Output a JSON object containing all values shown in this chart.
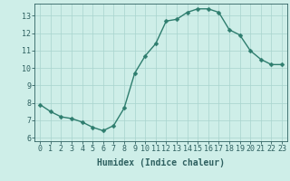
{
  "x": [
    0,
    1,
    2,
    3,
    4,
    5,
    6,
    7,
    8,
    9,
    10,
    11,
    12,
    13,
    14,
    15,
    16,
    17,
    18,
    19,
    20,
    21,
    22,
    23
  ],
  "y": [
    7.9,
    7.5,
    7.2,
    7.1,
    6.9,
    6.6,
    6.4,
    6.7,
    7.7,
    9.7,
    10.7,
    11.4,
    12.7,
    12.8,
    13.2,
    13.4,
    13.4,
    13.2,
    12.2,
    11.9,
    11.0,
    10.5,
    10.2,
    10.2
  ],
  "line_color": "#2e7d6e",
  "marker_color": "#2e7d6e",
  "bg_color": "#ceeee8",
  "grid_color": "#a8d4ce",
  "xlabel": "Humidex (Indice chaleur)",
  "xlim": [
    -0.5,
    23.5
  ],
  "ylim": [
    5.8,
    13.7
  ],
  "yticks": [
    6,
    7,
    8,
    9,
    10,
    11,
    12,
    13
  ],
  "xticks": [
    0,
    1,
    2,
    3,
    4,
    5,
    6,
    7,
    8,
    9,
    10,
    11,
    12,
    13,
    14,
    15,
    16,
    17,
    18,
    19,
    20,
    21,
    22,
    23
  ],
  "xtick_labels": [
    "0",
    "1",
    "2",
    "3",
    "4",
    "5",
    "6",
    "7",
    "8",
    "9",
    "10",
    "11",
    "12",
    "13",
    "14",
    "15",
    "16",
    "17",
    "18",
    "19",
    "20",
    "21",
    "22",
    "23"
  ],
  "font_color": "#2e6060",
  "marker_size": 2.5,
  "line_width": 1.0,
  "xlabel_fontsize": 7.0,
  "tick_fontsize": 6.0
}
